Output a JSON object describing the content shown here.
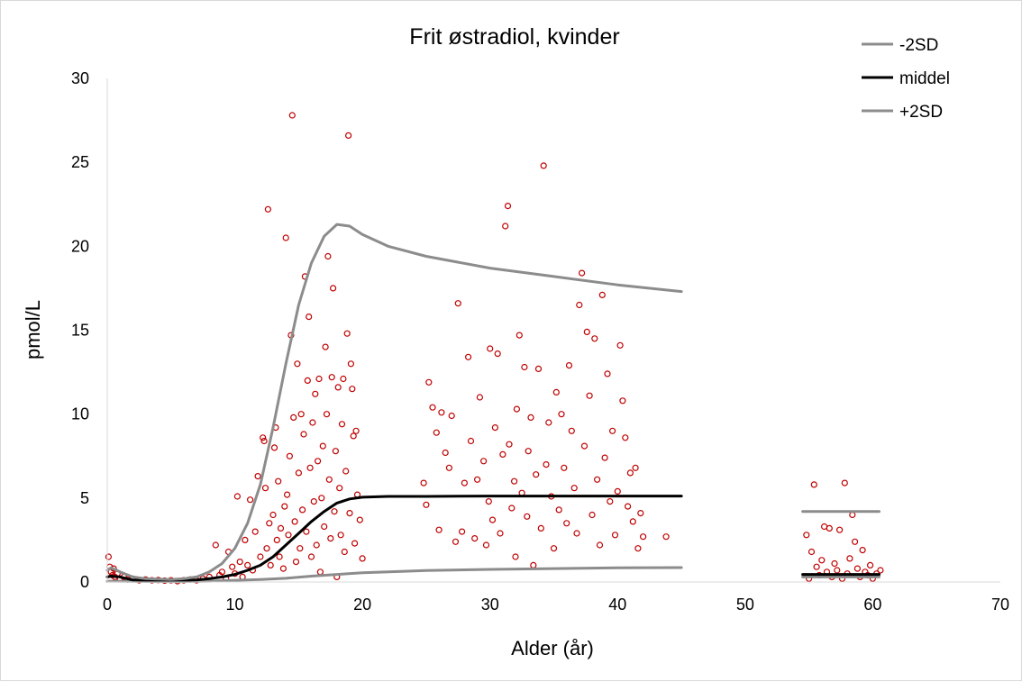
{
  "chart_data": {
    "type": "scatter",
    "title": "Frit østradiol, kvinder",
    "xlabel": "Alder (år)",
    "ylabel": "pmol/L",
    "xlim": [
      0,
      70
    ],
    "ylim": [
      0,
      30
    ],
    "xticks": [
      0,
      10,
      20,
      30,
      40,
      50,
      60,
      70
    ],
    "yticks": [
      0,
      5,
      10,
      15,
      20,
      25,
      30
    ],
    "grid": false,
    "legend_position": "top-right",
    "colors": {
      "upper_sd": "#8c8c8c",
      "mean": "#000000",
      "lower_sd": "#8c8c8c",
      "points": "#c00000"
    },
    "legend": [
      {
        "label": "-2SD",
        "color": "#8c8c8c"
      },
      {
        "label": "middel",
        "color": "#000000"
      },
      {
        "label": "+2SD",
        "color": "#8c8c8c"
      }
    ],
    "lines": [
      {
        "name": "-2SD",
        "color": "#8c8c8c",
        "segments": [
          [
            [
              0,
              0.05
            ],
            [
              5,
              0.02
            ],
            [
              8,
              0.05
            ],
            [
              10,
              0.1
            ],
            [
              12,
              0.15
            ],
            [
              14,
              0.22
            ],
            [
              16,
              0.35
            ],
            [
              18,
              0.45
            ],
            [
              20,
              0.55
            ],
            [
              25,
              0.68
            ],
            [
              30,
              0.75
            ],
            [
              35,
              0.8
            ],
            [
              40,
              0.84
            ],
            [
              45,
              0.86
            ]
          ],
          [
            [
              54.5,
              0.3
            ],
            [
              60.5,
              0.3
            ]
          ]
        ]
      },
      {
        "name": "middel",
        "color": "#000000",
        "segments": [
          [
            [
              0,
              0.3
            ],
            [
              0.3,
              0.35
            ],
            [
              1,
              0.3
            ],
            [
              2,
              0.12
            ],
            [
              3,
              0.1
            ],
            [
              5,
              0.08
            ],
            [
              6,
              0.1
            ],
            [
              7,
              0.12
            ],
            [
              8,
              0.2
            ],
            [
              9,
              0.3
            ],
            [
              10,
              0.45
            ],
            [
              11,
              0.7
            ],
            [
              12,
              1.0
            ],
            [
              13,
              1.5
            ],
            [
              14,
              2.2
            ],
            [
              15,
              2.9
            ],
            [
              16,
              3.6
            ],
            [
              17,
              4.2
            ],
            [
              18,
              4.7
            ],
            [
              19,
              4.95
            ],
            [
              20,
              5.05
            ],
            [
              22,
              5.1
            ],
            [
              25,
              5.1
            ],
            [
              30,
              5.12
            ],
            [
              35,
              5.12
            ],
            [
              40,
              5.12
            ],
            [
              45,
              5.12
            ]
          ],
          [
            [
              54.5,
              0.45
            ],
            [
              60.5,
              0.45
            ]
          ]
        ]
      },
      {
        "name": "+2SD",
        "color": "#8c8c8c",
        "segments": [
          [
            [
              0,
              0.7
            ],
            [
              0.3,
              0.85
            ],
            [
              1,
              0.6
            ],
            [
              2,
              0.3
            ],
            [
              3,
              0.2
            ],
            [
              5,
              0.15
            ],
            [
              6,
              0.2
            ],
            [
              7,
              0.3
            ],
            [
              8,
              0.6
            ],
            [
              9,
              1.1
            ],
            [
              10,
              2.0
            ],
            [
              11,
              3.5
            ],
            [
              12,
              5.8
            ],
            [
              13,
              9.2
            ],
            [
              14,
              13.0
            ],
            [
              15,
              16.5
            ],
            [
              16,
              19.0
            ],
            [
              17,
              20.6
            ],
            [
              18,
              21.3
            ],
            [
              19,
              21.2
            ],
            [
              20,
              20.7
            ],
            [
              22,
              20.0
            ],
            [
              25,
              19.4
            ],
            [
              30,
              18.7
            ],
            [
              35,
              18.2
            ],
            [
              40,
              17.7
            ],
            [
              45,
              17.3
            ]
          ],
          [
            [
              54.5,
              4.2
            ],
            [
              60.5,
              4.2
            ]
          ]
        ]
      }
    ],
    "points": [
      [
        0.1,
        1.5
      ],
      [
        0.2,
        0.9
      ],
      [
        0.3,
        0.6
      ],
      [
        0.4,
        0.4
      ],
      [
        0.5,
        0.8
      ],
      [
        0.6,
        0.3
      ],
      [
        0.8,
        0.5
      ],
      [
        1.0,
        0.2
      ],
      [
        1.3,
        0.3
      ],
      [
        1.6,
        0.15
      ],
      [
        2.0,
        0.2
      ],
      [
        2.5,
        0.1
      ],
      [
        3.0,
        0.15
      ],
      [
        3.5,
        0.1
      ],
      [
        4.0,
        0.12
      ],
      [
        4.5,
        0.08
      ],
      [
        5.0,
        0.1
      ],
      [
        5.5,
        0.05
      ],
      [
        6.0,
        0.1
      ],
      [
        6.5,
        0.15
      ],
      [
        7.0,
        0.1
      ],
      [
        7.5,
        0.2
      ],
      [
        8.0,
        0.3
      ],
      [
        8.5,
        2.2
      ],
      [
        8.8,
        0.4
      ],
      [
        9.0,
        0.6
      ],
      [
        9.3,
        0.2
      ],
      [
        9.5,
        1.8
      ],
      [
        9.8,
        0.9
      ],
      [
        10.0,
        0.5
      ],
      [
        10.2,
        5.1
      ],
      [
        10.4,
        1.2
      ],
      [
        10.6,
        0.3
      ],
      [
        10.8,
        2.5
      ],
      [
        11.0,
        1.0
      ],
      [
        11.2,
        4.9
      ],
      [
        11.4,
        0.7
      ],
      [
        11.6,
        3.0
      ],
      [
        11.8,
        6.3
      ],
      [
        12.0,
        1.5
      ],
      [
        12.2,
        8.6
      ],
      [
        12.3,
        8.4
      ],
      [
        12.4,
        5.6
      ],
      [
        12.5,
        2.0
      ],
      [
        12.6,
        22.2
      ],
      [
        12.7,
        3.5
      ],
      [
        12.8,
        1.0
      ],
      [
        13.0,
        4.0
      ],
      [
        13.1,
        8.0
      ],
      [
        13.2,
        9.2
      ],
      [
        13.3,
        2.5
      ],
      [
        13.4,
        6.0
      ],
      [
        13.5,
        1.5
      ],
      [
        13.6,
        3.2
      ],
      [
        13.8,
        0.8
      ],
      [
        13.9,
        4.5
      ],
      [
        14.0,
        20.5
      ],
      [
        14.1,
        5.2
      ],
      [
        14.2,
        2.8
      ],
      [
        14.3,
        7.5
      ],
      [
        14.4,
        14.7
      ],
      [
        14.5,
        27.8
      ],
      [
        14.6,
        9.8
      ],
      [
        14.7,
        3.6
      ],
      [
        14.8,
        1.2
      ],
      [
        14.9,
        13.0
      ],
      [
        15.0,
        6.5
      ],
      [
        15.1,
        2.0
      ],
      [
        15.2,
        10.0
      ],
      [
        15.3,
        4.3
      ],
      [
        15.4,
        8.8
      ],
      [
        15.5,
        18.2
      ],
      [
        15.6,
        3.0
      ],
      [
        15.7,
        12.0
      ],
      [
        15.8,
        15.8
      ],
      [
        15.9,
        6.8
      ],
      [
        16.0,
        1.5
      ],
      [
        16.1,
        9.5
      ],
      [
        16.2,
        4.8
      ],
      [
        16.3,
        11.2
      ],
      [
        16.4,
        2.2
      ],
      [
        16.5,
        7.2
      ],
      [
        16.6,
        12.1
      ],
      [
        16.7,
        0.6
      ],
      [
        16.8,
        5.0
      ],
      [
        16.9,
        8.1
      ],
      [
        17.0,
        3.3
      ],
      [
        17.1,
        14.0
      ],
      [
        17.2,
        10.0
      ],
      [
        17.3,
        19.4
      ],
      [
        17.4,
        6.1
      ],
      [
        17.5,
        2.6
      ],
      [
        17.6,
        12.2
      ],
      [
        17.7,
        17.5
      ],
      [
        17.8,
        4.2
      ],
      [
        17.9,
        7.8
      ],
      [
        18.0,
        0.3
      ],
      [
        18.1,
        11.6
      ],
      [
        18.2,
        5.6
      ],
      [
        18.3,
        2.8
      ],
      [
        18.4,
        9.4
      ],
      [
        18.5,
        12.1
      ],
      [
        18.6,
        1.8
      ],
      [
        18.7,
        6.6
      ],
      [
        18.8,
        14.8
      ],
      [
        18.9,
        26.6
      ],
      [
        19.0,
        4.1
      ],
      [
        19.1,
        13.0
      ],
      [
        19.2,
        11.5
      ],
      [
        19.3,
        8.7
      ],
      [
        19.4,
        2.3
      ],
      [
        19.5,
        9.0
      ],
      [
        19.6,
        5.2
      ],
      [
        19.8,
        3.7
      ],
      [
        20.0,
        1.4
      ],
      [
        24.8,
        5.9
      ],
      [
        25.0,
        4.6
      ],
      [
        25.2,
        11.9
      ],
      [
        25.5,
        10.4
      ],
      [
        25.8,
        8.9
      ],
      [
        26.0,
        3.1
      ],
      [
        26.2,
        10.1
      ],
      [
        26.5,
        7.7
      ],
      [
        26.8,
        6.8
      ],
      [
        27.0,
        9.9
      ],
      [
        27.3,
        2.4
      ],
      [
        27.5,
        16.6
      ],
      [
        27.8,
        3.0
      ],
      [
        28.0,
        5.9
      ],
      [
        28.3,
        13.4
      ],
      [
        28.5,
        8.4
      ],
      [
        28.8,
        2.6
      ],
      [
        29.0,
        6.1
      ],
      [
        29.2,
        11.0
      ],
      [
        29.5,
        7.2
      ],
      [
        29.7,
        2.2
      ],
      [
        29.9,
        4.8
      ],
      [
        30.0,
        13.9
      ],
      [
        30.2,
        3.7
      ],
      [
        30.4,
        9.2
      ],
      [
        30.6,
        13.6
      ],
      [
        30.8,
        2.9
      ],
      [
        31.0,
        7.6
      ],
      [
        31.2,
        21.2
      ],
      [
        31.4,
        22.4
      ],
      [
        31.5,
        8.2
      ],
      [
        31.7,
        4.4
      ],
      [
        31.9,
        6.0
      ],
      [
        32.0,
        1.5
      ],
      [
        32.1,
        10.3
      ],
      [
        32.3,
        14.7
      ],
      [
        32.5,
        5.3
      ],
      [
        32.7,
        12.8
      ],
      [
        32.9,
        3.9
      ],
      [
        33.0,
        7.8
      ],
      [
        33.2,
        9.8
      ],
      [
        33.4,
        1.0
      ],
      [
        33.6,
        6.4
      ],
      [
        33.8,
        12.7
      ],
      [
        34.0,
        3.2
      ],
      [
        34.2,
        24.8
      ],
      [
        34.4,
        7.0
      ],
      [
        34.6,
        9.5
      ],
      [
        34.8,
        5.1
      ],
      [
        35.0,
        2.0
      ],
      [
        35.2,
        11.3
      ],
      [
        35.4,
        4.3
      ],
      [
        35.6,
        10.0
      ],
      [
        35.8,
        6.8
      ],
      [
        36.0,
        3.5
      ],
      [
        36.2,
        12.9
      ],
      [
        36.4,
        9.0
      ],
      [
        36.6,
        5.6
      ],
      [
        36.8,
        2.9
      ],
      [
        37.0,
        16.5
      ],
      [
        37.2,
        18.4
      ],
      [
        37.4,
        8.1
      ],
      [
        37.6,
        14.9
      ],
      [
        37.8,
        11.1
      ],
      [
        38.0,
        4.0
      ],
      [
        38.2,
        14.5
      ],
      [
        38.4,
        6.1
      ],
      [
        38.6,
        2.2
      ],
      [
        38.8,
        17.1
      ],
      [
        39.0,
        7.4
      ],
      [
        39.2,
        12.4
      ],
      [
        39.4,
        4.8
      ],
      [
        39.6,
        9.0
      ],
      [
        39.8,
        2.8
      ],
      [
        40.0,
        5.4
      ],
      [
        40.2,
        14.1
      ],
      [
        40.4,
        10.8
      ],
      [
        40.6,
        8.6
      ],
      [
        40.8,
        4.5
      ],
      [
        41.0,
        6.5
      ],
      [
        41.2,
        3.6
      ],
      [
        41.4,
        6.8
      ],
      [
        41.6,
        2.0
      ],
      [
        41.8,
        4.1
      ],
      [
        42.0,
        2.7
      ],
      [
        43.8,
        2.7
      ],
      [
        54.8,
        2.8
      ],
      [
        55.0,
        0.2
      ],
      [
        55.2,
        1.8
      ],
      [
        55.4,
        5.8
      ],
      [
        55.6,
        0.9
      ],
      [
        55.8,
        0.4
      ],
      [
        56.0,
        1.3
      ],
      [
        56.2,
        3.3
      ],
      [
        56.4,
        0.6
      ],
      [
        56.6,
        3.2
      ],
      [
        56.8,
        0.3
      ],
      [
        57.0,
        1.1
      ],
      [
        57.2,
        0.7
      ],
      [
        57.4,
        3.1
      ],
      [
        57.6,
        0.2
      ],
      [
        57.8,
        5.9
      ],
      [
        58.0,
        0.5
      ],
      [
        58.2,
        1.4
      ],
      [
        58.4,
        4.0
      ],
      [
        58.6,
        2.4
      ],
      [
        58.8,
        0.8
      ],
      [
        59.0,
        0.3
      ],
      [
        59.2,
        1.9
      ],
      [
        59.4,
        0.6
      ],
      [
        59.6,
        0.4
      ],
      [
        59.8,
        1.0
      ],
      [
        60.0,
        0.2
      ],
      [
        60.3,
        0.5
      ],
      [
        60.6,
        0.7
      ]
    ]
  }
}
